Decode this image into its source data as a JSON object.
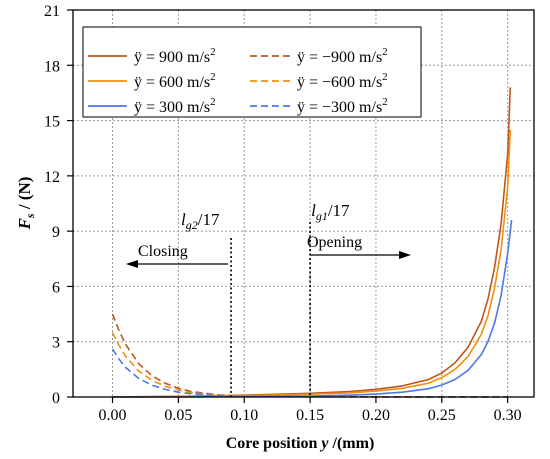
{
  "chart_data": {
    "type": "line",
    "xlabel": "Core position y /(mm)",
    "ylabel": "Fs / (N)",
    "xlim": [
      -0.03,
      0.32
    ],
    "ylim": [
      0,
      21
    ],
    "xticks": [
      0.0,
      0.05,
      0.1,
      0.15,
      0.2,
      0.25,
      0.3
    ],
    "xtick_labels": [
      "0.00",
      "0.05",
      "0.10",
      "0.15",
      "0.20",
      "0.25",
      "0.30"
    ],
    "yticks": [
      0,
      3,
      6,
      9,
      12,
      15,
      18,
      21
    ],
    "ytick_labels": [
      "0",
      "3",
      "6",
      "9",
      "12",
      "15",
      "18",
      "21"
    ],
    "grid": true,
    "legend_position": "top-left",
    "colors": {
      "a900": "#c0561c",
      "a600": "#f0900f",
      "a300": "#4f78e6"
    },
    "series": [
      {
        "name": "ÿ = 900 m/s²",
        "color": "#c0561c",
        "style": "solid",
        "x": [
          0.0,
          0.03,
          0.05,
          0.08,
          0.1,
          0.12,
          0.15,
          0.18,
          0.2,
          0.22,
          0.24,
          0.25,
          0.26,
          0.27,
          0.28,
          0.285,
          0.29,
          0.295,
          0.3,
          0.302
        ],
        "y": [
          0.0,
          0.02,
          0.04,
          0.07,
          0.1,
          0.14,
          0.2,
          0.3,
          0.42,
          0.6,
          0.95,
          1.3,
          1.85,
          2.7,
          4.1,
          5.3,
          7.0,
          9.4,
          13.2,
          16.8
        ]
      },
      {
        "name": "ÿ = −900 m/s²",
        "color": "#c0561c",
        "style": "dashed",
        "x": [
          0.0,
          0.005,
          0.01,
          0.02,
          0.03,
          0.04,
          0.05,
          0.06,
          0.07,
          0.08,
          0.09,
          0.1,
          0.15,
          0.2,
          0.25,
          0.3
        ],
        "y": [
          4.5,
          3.6,
          2.85,
          1.8,
          1.15,
          0.75,
          0.48,
          0.3,
          0.2,
          0.12,
          0.08,
          0.05,
          0.02,
          0.01,
          0.01,
          0.0
        ]
      },
      {
        "name": "ÿ = 600 m/s²",
        "color": "#f0900f",
        "style": "solid",
        "x": [
          0.0,
          0.03,
          0.05,
          0.08,
          0.1,
          0.12,
          0.15,
          0.18,
          0.2,
          0.22,
          0.24,
          0.25,
          0.26,
          0.27,
          0.28,
          0.285,
          0.29,
          0.295,
          0.3,
          0.302
        ],
        "y": [
          0.0,
          0.01,
          0.03,
          0.05,
          0.07,
          0.1,
          0.15,
          0.22,
          0.32,
          0.47,
          0.75,
          1.05,
          1.5,
          2.2,
          3.4,
          4.4,
          5.9,
          8.0,
          11.4,
          14.5
        ]
      },
      {
        "name": "ÿ = −600 m/s²",
        "color": "#f0900f",
        "style": "dashed",
        "x": [
          0.0,
          0.005,
          0.01,
          0.02,
          0.03,
          0.04,
          0.05,
          0.06,
          0.07,
          0.08,
          0.09,
          0.1,
          0.15,
          0.2,
          0.25,
          0.3
        ],
        "y": [
          3.5,
          2.8,
          2.2,
          1.4,
          0.9,
          0.58,
          0.38,
          0.24,
          0.15,
          0.1,
          0.06,
          0.04,
          0.02,
          0.01,
          0.0,
          0.0
        ]
      },
      {
        "name": "ÿ = 300 m/s²",
        "color": "#4f78e6",
        "style": "solid",
        "x": [
          0.0,
          0.05,
          0.1,
          0.15,
          0.18,
          0.2,
          0.22,
          0.24,
          0.25,
          0.26,
          0.27,
          0.28,
          0.285,
          0.29,
          0.295,
          0.3,
          0.303
        ],
        "y": [
          0.0,
          0.0,
          0.02,
          0.05,
          0.1,
          0.16,
          0.26,
          0.45,
          0.65,
          0.95,
          1.45,
          2.3,
          3.0,
          4.0,
          5.5,
          7.8,
          9.6
        ]
      },
      {
        "name": "ÿ = −300 m/s²",
        "color": "#4f78e6",
        "style": "dashed",
        "x": [
          0.0,
          0.005,
          0.01,
          0.02,
          0.03,
          0.04,
          0.05,
          0.06,
          0.07,
          0.08,
          0.09,
          0.1,
          0.15,
          0.2,
          0.25,
          0.3
        ],
        "y": [
          2.6,
          2.05,
          1.6,
          1.0,
          0.64,
          0.41,
          0.26,
          0.17,
          0.11,
          0.07,
          0.04,
          0.03,
          0.01,
          0.0,
          0.0,
          0.0
        ]
      }
    ],
    "annotations": [
      {
        "id": "lg2",
        "x": 0.09,
        "base": "l",
        "sub": "g2",
        "tail": "/17",
        "arrow_label": "Closing",
        "arrow": "left"
      },
      {
        "id": "lg1",
        "x": 0.15,
        "base": "l",
        "sub": "g1",
        "tail": "/17",
        "arrow_label": "Opening",
        "arrow": "right"
      }
    ]
  },
  "labels": {
    "x_axis_main": "Core position ",
    "x_axis_var": "y",
    "x_axis_tail": " /(mm)",
    "y_axis_var": "F",
    "y_axis_sub": "s",
    "y_axis_tail": " / (N)",
    "legend": [
      {
        "pre": "ÿ = 900 m/s",
        "sup": "2"
      },
      {
        "pre": "ÿ = −900 m/s",
        "sup": "2"
      },
      {
        "pre": "ÿ = 600 m/s",
        "sup": "2"
      },
      {
        "pre": "ÿ = −600 m/s",
        "sup": "2"
      },
      {
        "pre": "ÿ = 300 m/s",
        "sup": "2"
      },
      {
        "pre": "ÿ = −300 m/s",
        "sup": "2"
      }
    ]
  }
}
